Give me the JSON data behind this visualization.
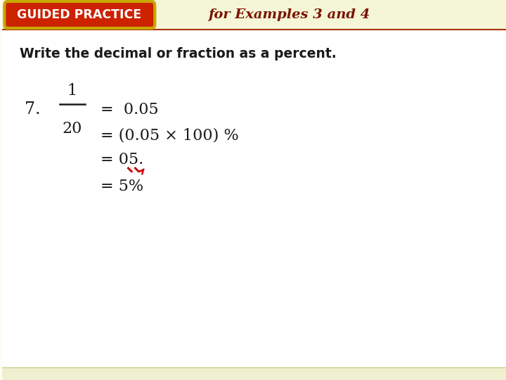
{
  "bg_color": "#fffef5",
  "main_area_color": "#ffffff",
  "header_band_color": "#f5f5d8",
  "footer_band_color": "#f0f0d0",
  "badge_bg": "#cc2200",
  "badge_border": "#c8a800",
  "badge_text": "GUIDED PRACTICE",
  "badge_text_color": "#ffffff",
  "header_text": "for Examples 3 and 4",
  "header_text_color": "#7a1500",
  "instruction_text": "Write the decimal or fraction as a percent.",
  "instruction_color": "#1a1a1a",
  "number_label": "7.",
  "fraction_num": "1",
  "fraction_den": "20",
  "line1": "=  0.05",
  "line2": "= (0.05 × 100) %",
  "line3_prefix": "= 05.",
  "line4": "= 5%",
  "main_text_color": "#1a1a1a",
  "arrow_color": "#cc0000",
  "stripe_color": "#e8e8c0"
}
